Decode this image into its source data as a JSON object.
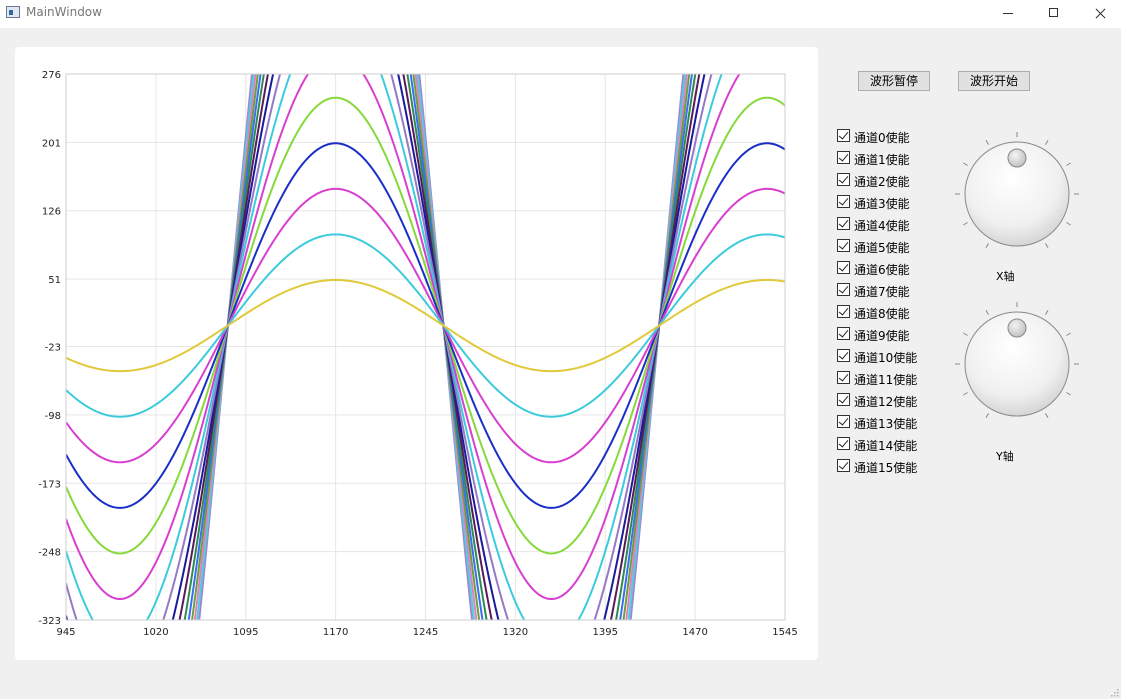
{
  "window": {
    "title": "MainWindow"
  },
  "buttons": {
    "pause": "波形暂停",
    "start": "波形开始"
  },
  "channels": [
    {
      "label": "通道0使能",
      "checked": true
    },
    {
      "label": "通道1使能",
      "checked": true
    },
    {
      "label": "通道2使能",
      "checked": true
    },
    {
      "label": "通道3使能",
      "checked": true
    },
    {
      "label": "通道4使能",
      "checked": true
    },
    {
      "label": "通道5使能",
      "checked": true
    },
    {
      "label": "通道6使能",
      "checked": true
    },
    {
      "label": "通道7使能",
      "checked": true
    },
    {
      "label": "通道8使能",
      "checked": true
    },
    {
      "label": "通道9使能",
      "checked": true
    },
    {
      "label": "通道10使能",
      "checked": true
    },
    {
      "label": "通道11使能",
      "checked": true
    },
    {
      "label": "通道12使能",
      "checked": true
    },
    {
      "label": "通道13使能",
      "checked": true
    },
    {
      "label": "通道14使能",
      "checked": true
    },
    {
      "label": "通道15使能",
      "checked": true
    }
  ],
  "dials": {
    "x_label": "X轴",
    "y_label": "Y轴"
  },
  "chart_data": {
    "type": "line",
    "xlim": [
      945,
      1545
    ],
    "ylim": [
      -323,
      276
    ],
    "x_ticks": [
      "945",
      "1020",
      "1095",
      "1170",
      "1245",
      "1320",
      "1395",
      "1470",
      "1545"
    ],
    "y_ticks": [
      "276",
      "201",
      "126",
      "51",
      "-23",
      "-98",
      "-173",
      "-248",
      "-323"
    ],
    "grid": true,
    "function": "amplitude * sin(2*pi*(x - 1080)/360)",
    "series": [
      {
        "amplitude": 50,
        "color": "#e0c93a"
      },
      {
        "amplitude": 100,
        "color": "#3ccbdc"
      },
      {
        "amplitude": 150,
        "color": "#d83fd0"
      },
      {
        "amplitude": 200,
        "color": "#1a2fc7"
      },
      {
        "amplitude": 250,
        "color": "#86d93b"
      },
      {
        "amplitude": 300,
        "color": "#d83fd0"
      },
      {
        "amplitude": 350,
        "color": "#3ccbdc"
      },
      {
        "amplitude": 400,
        "color": "#9579c6"
      },
      {
        "amplitude": 450,
        "color": "#1a1a9c"
      },
      {
        "amplitude": 500,
        "color": "#5a1a5a"
      },
      {
        "amplitude": 550,
        "color": "#2e8a55"
      },
      {
        "amplitude": 600,
        "color": "#3a6ef0"
      },
      {
        "amplitude": 650,
        "color": "#6a9f3c"
      },
      {
        "amplitude": 700,
        "color": "#e080c0"
      },
      {
        "amplitude": 750,
        "color": "#4ad1e0"
      },
      {
        "amplitude": 800,
        "color": "#a088d0"
      }
    ]
  }
}
